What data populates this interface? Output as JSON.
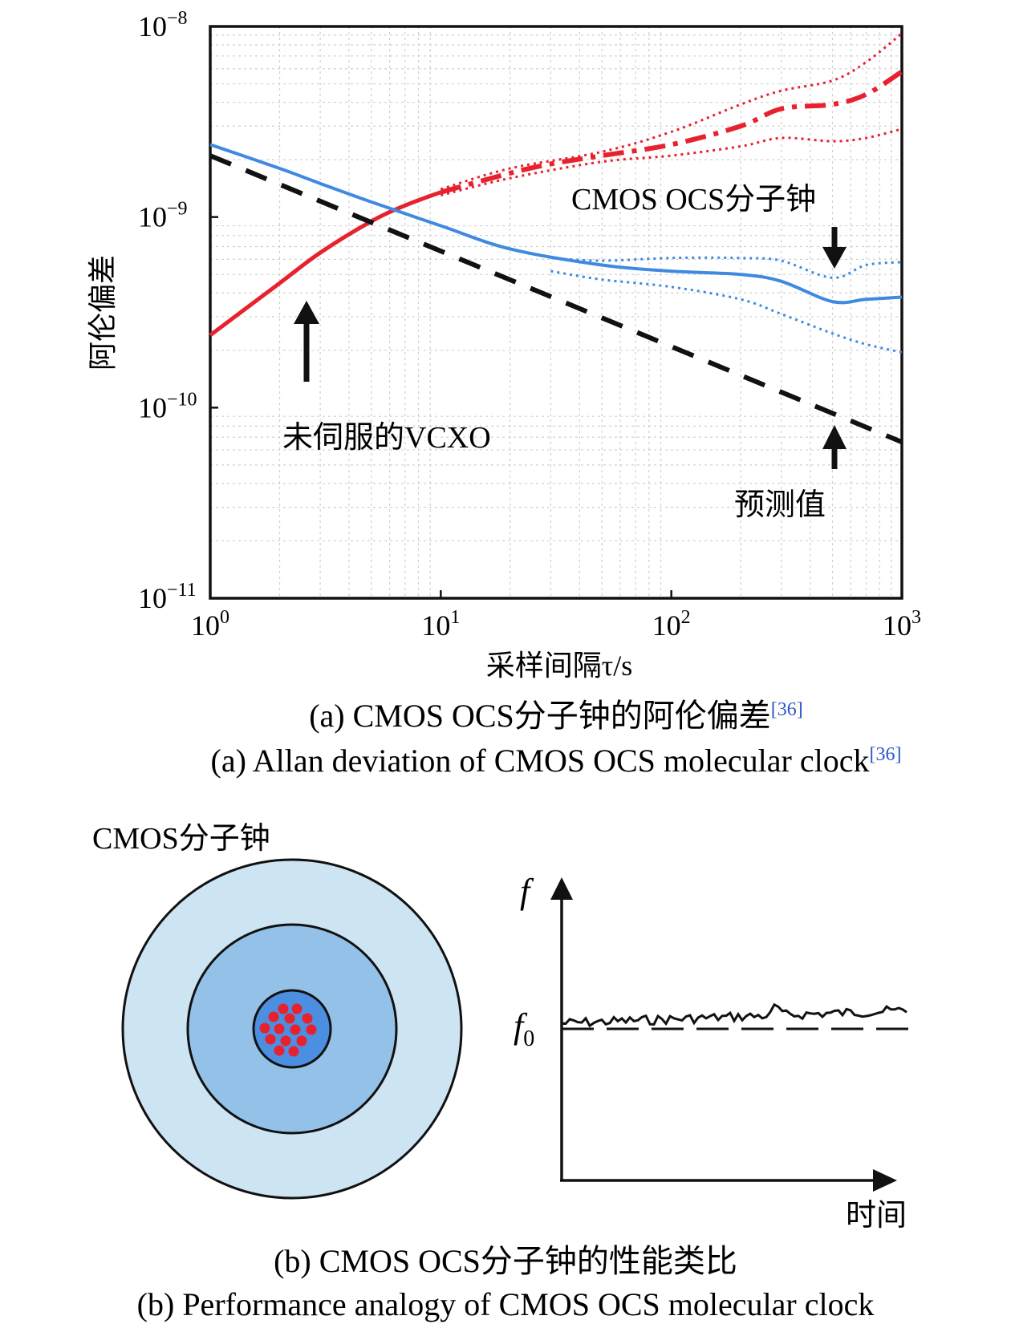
{
  "chart_data": [
    {
      "type": "line",
      "x_scale": "log",
      "y_scale": "log",
      "xlim": [
        1,
        1000
      ],
      "ylim": [
        1e-11,
        1e-08
      ],
      "grid": true,
      "xlabel": "采样间隔τ/s",
      "ylabel": "阿伦偏差",
      "x_ticks": [
        {
          "base": "10",
          "exp": "0",
          "value": 1
        },
        {
          "base": "10",
          "exp": "1",
          "value": 10
        },
        {
          "base": "10",
          "exp": "2",
          "value": 100
        },
        {
          "base": "10",
          "exp": "3",
          "value": 1000
        }
      ],
      "y_ticks": [
        {
          "base": "10",
          "exp": "−8",
          "value": 1e-08
        },
        {
          "base": "10",
          "exp": "−9",
          "value": 1e-09
        },
        {
          "base": "10",
          "exp": "−10",
          "value": 1e-10
        },
        {
          "base": "10",
          "exp": "−11",
          "value": 1e-11
        }
      ],
      "series": [
        {
          "id": "vcxo",
          "color": "#e8212e",
          "style": "solid",
          "width": 5,
          "x": [
            1,
            2,
            3,
            5,
            7,
            10
          ],
          "y": [
            2.4e-10,
            4.5e-10,
            6.5e-10,
            9.5e-10,
            1.15e-09,
            1.35e-09
          ]
        },
        {
          "id": "vcxo-mean",
          "color": "#e8212e",
          "style": "dashdot",
          "width": 6,
          "x": [
            10,
            20,
            30,
            50,
            100,
            200,
            300,
            500,
            700,
            1000
          ],
          "y": [
            1.35e-09,
            1.7e-09,
            1.9e-09,
            2.1e-09,
            2.4e-09,
            3e-09,
            3.7e-09,
            3.9e-09,
            4.4e-09,
            5.8e-09
          ]
        },
        {
          "id": "vcxo-upper",
          "color": "#e8212e",
          "style": "dotted",
          "width": 3,
          "x": [
            10,
            20,
            50,
            100,
            200,
            300,
            500,
            700,
            1000
          ],
          "y": [
            1.4e-09,
            1.8e-09,
            2.2e-09,
            2.8e-09,
            3.9e-09,
            4.6e-09,
            5.2e-09,
            6.5e-09,
            9.2e-09
          ]
        },
        {
          "id": "vcxo-lower",
          "color": "#e8212e",
          "style": "dotted",
          "width": 3,
          "x": [
            10,
            20,
            50,
            100,
            200,
            300,
            500,
            700,
            1000
          ],
          "y": [
            1.3e-09,
            1.6e-09,
            1.95e-09,
            2.1e-09,
            2.35e-09,
            2.6e-09,
            2.5e-09,
            2.6e-09,
            2.9e-09
          ]
        },
        {
          "id": "ocs",
          "color": "#3f8ae0",
          "style": "solid",
          "width": 4,
          "x": [
            1,
            2,
            3,
            5,
            10,
            20,
            50,
            100,
            200,
            300,
            500,
            700,
            1000
          ],
          "y": [
            2.4e-09,
            1.8e-09,
            1.5e-09,
            1.2e-09,
            9e-10,
            6.8e-10,
            5.6e-10,
            5.2e-10,
            5e-10,
            4.6e-10,
            3.6e-10,
            3.7e-10,
            3.8e-10
          ]
        },
        {
          "id": "ocs-upper",
          "color": "#3f8ae0",
          "style": "dotted",
          "width": 3,
          "x": [
            30,
            50,
            100,
            200,
            300,
            500,
            700,
            1000
          ],
          "y": [
            6.1e-10,
            5.9e-10,
            6.1e-10,
            6.1e-10,
            5.9e-10,
            4.8e-10,
            5.6e-10,
            5.8e-10
          ]
        },
        {
          "id": "ocs-lower",
          "color": "#3f8ae0",
          "style": "dotted",
          "width": 3,
          "x": [
            30,
            50,
            100,
            200,
            300,
            500,
            700,
            1000
          ],
          "y": [
            5.2e-10,
            4.7e-10,
            4.3e-10,
            3.7e-10,
            3.1e-10,
            2.45e-10,
            2.15e-10,
            1.95e-10
          ]
        },
        {
          "id": "predicted",
          "color": "#111111",
          "style": "dashed",
          "width": 6,
          "x": [
            1,
            1000
          ],
          "y": [
            2.1e-09,
            6.6e-11
          ]
        }
      ],
      "annotations": {
        "ocs": "CMOS OCS分子钟",
        "vcxo": "未伺服的VCXO",
        "predicted": "预测值"
      },
      "caption_cn": "(a) CMOS OCS分子钟的阿伦偏差",
      "caption_en": "(a) Allan deviation of CMOS OCS molecular clock",
      "ref": "[36]"
    },
    {
      "type": "line",
      "ylabel": "f",
      "xlabel": "时间",
      "ref_label": "f",
      "ref_sub": "0",
      "series": [
        {
          "id": "frequency",
          "style": "solid",
          "color": "#111111"
        },
        {
          "id": "f0-reference",
          "style": "dashed",
          "color": "#111111"
        }
      ]
    }
  ],
  "diagram": {
    "title": "CMOS分子钟",
    "colors": {
      "outer": "#cde4f2",
      "middle": "#94c1e8",
      "inner": "#4c8ee0",
      "dots": "#e8212e"
    },
    "caption_cn": "(b) CMOS OCS分子钟的性能类比",
    "caption_en": "(b) Performance analogy of CMOS OCS molecular clock"
  }
}
